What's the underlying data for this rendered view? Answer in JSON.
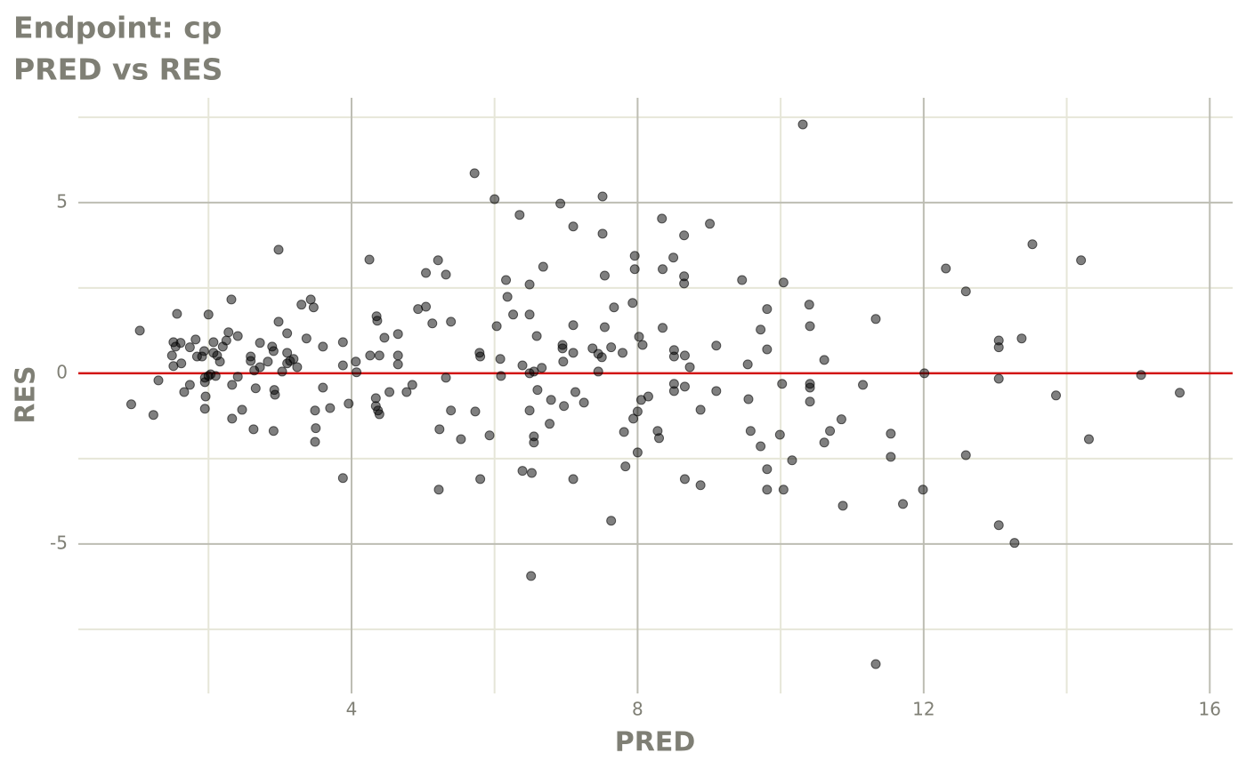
{
  "chart_data": {
    "type": "scatter",
    "title": "Endpoint:  cp",
    "subtitle": "PRED vs RES",
    "x_label": "PRED",
    "y_label": "RES",
    "xlim": [
      0.18,
      16.32
    ],
    "ylim": [
      -9.38,
      8.07
    ],
    "xticks": [
      4,
      8,
      12,
      16
    ],
    "yticks": [
      -5,
      0,
      5
    ],
    "xminor": [
      2,
      6,
      10,
      14
    ],
    "yminor": [
      -7.5,
      -2.5,
      2.5,
      7.5
    ],
    "grid": true,
    "hline": 0,
    "hline_color": "#d21515",
    "color": "#000000",
    "series": [
      {
        "name": "RES",
        "x": [
          0.92,
          1.23,
          1.04,
          1.3,
          1.49,
          1.51,
          1.51,
          1.54,
          1.56,
          1.61,
          1.62,
          1.66,
          1.74,
          1.74,
          1.82,
          1.84,
          1.91,
          1.94,
          1.95,
          1.95,
          1.96,
          1.95,
          2.0,
          2.0,
          2.03,
          2.07,
          2.07,
          2.1,
          2.12,
          2.16,
          2.2,
          2.25,
          2.28,
          2.32,
          2.33,
          2.33,
          2.41,
          2.41,
          2.47,
          2.59,
          2.59,
          2.63,
          2.64,
          2.66,
          2.72,
          2.72,
          2.83,
          2.89,
          2.91,
          2.91,
          2.92,
          2.93,
          2.98,
          2.98,
          3.03,
          3.1,
          3.1,
          3.1,
          3.14,
          3.19,
          3.24,
          3.3,
          3.37,
          3.43,
          3.47,
          3.49,
          3.49,
          3.5,
          3.6,
          3.6,
          3.7,
          3.88,
          3.88,
          3.88,
          3.96,
          4.06,
          4.07,
          4.25,
          4.26,
          4.34,
          4.34,
          4.35,
          4.36,
          4.37,
          4.39,
          4.39,
          4.46,
          4.53,
          4.65,
          4.65,
          4.65,
          4.77,
          4.85,
          4.93,
          5.04,
          5.04,
          5.13,
          5.21,
          5.23,
          5.22,
          5.32,
          5.32,
          5.39,
          5.39,
          5.53,
          5.72,
          5.73,
          5.79,
          5.8,
          5.8,
          5.93,
          6.0,
          6.03,
          6.08,
          6.09,
          6.16,
          6.18,
          6.26,
          6.35,
          6.39,
          6.39,
          6.49,
          6.49,
          6.49,
          6.49,
          6.52,
          6.51,
          6.55,
          6.55,
          6.55,
          6.59,
          6.6,
          6.68,
          6.66,
          6.79,
          6.77,
          6.92,
          6.95,
          6.95,
          6.96,
          6.97,
          7.1,
          7.1,
          7.1,
          7.1,
          7.13,
          7.25,
          7.37,
          7.45,
          7.45,
          7.5,
          7.51,
          7.51,
          7.54,
          7.54,
          7.63,
          7.63,
          7.67,
          7.79,
          7.81,
          7.83,
          7.93,
          7.96,
          7.96,
          7.94,
          8.0,
          8.0,
          8.02,
          8.05,
          8.07,
          8.15,
          8.28,
          8.3,
          8.34,
          8.35,
          8.35,
          8.5,
          8.51,
          8.51,
          8.51,
          8.51,
          8.65,
          8.65,
          8.65,
          8.66,
          8.66,
          8.66,
          8.73,
          8.88,
          8.88,
          9.01,
          9.1,
          9.1,
          9.46,
          9.54,
          9.55,
          9.58,
          9.72,
          9.72,
          9.81,
          9.81,
          9.81,
          9.81,
          9.99,
          10.02,
          10.04,
          10.04,
          10.16,
          10.31,
          10.4,
          10.41,
          10.41,
          10.41,
          10.41,
          10.61,
          10.61,
          10.69,
          10.85,
          10.87,
          11.15,
          11.33,
          11.33,
          11.54,
          11.54,
          11.71,
          11.99,
          12.01,
          12.31,
          12.59,
          12.59,
          13.05,
          13.05,
          13.05,
          13.05,
          13.27,
          13.37,
          13.52,
          13.85,
          14.2,
          14.31,
          15.04,
          15.58
        ],
        "values": [
          -0.91,
          -1.22,
          1.25,
          -0.21,
          0.52,
          0.91,
          0.21,
          0.78,
          1.74,
          0.89,
          0.29,
          -0.55,
          -0.34,
          0.76,
          0.99,
          0.49,
          0.49,
          0.65,
          -0.13,
          -0.26,
          -0.68,
          -1.04,
          1.72,
          -0.08,
          -0.03,
          0.91,
          0.6,
          -0.08,
          0.52,
          0.34,
          0.78,
          0.96,
          1.2,
          2.16,
          -0.34,
          -1.33,
          1.09,
          -0.1,
          -1.07,
          0.49,
          0.36,
          -1.64,
          0.08,
          -0.44,
          0.89,
          0.18,
          0.34,
          0.78,
          0.65,
          -1.69,
          -0.49,
          -0.63,
          3.62,
          1.51,
          0.05,
          1.17,
          0.6,
          0.29,
          0.36,
          0.42,
          0.18,
          2.01,
          1.02,
          2.16,
          1.93,
          -1.09,
          -2.01,
          -1.61,
          -0.42,
          0.78,
          -1.02,
          -3.07,
          0.23,
          0.91,
          -0.89,
          0.34,
          0.03,
          3.33,
          0.52,
          -0.73,
          -0.96,
          1.67,
          1.54,
          -1.09,
          -1.2,
          0.52,
          1.04,
          -0.55,
          1.15,
          0.52,
          0.26,
          -0.55,
          -0.34,
          1.88,
          2.94,
          1.95,
          1.46,
          3.31,
          -1.64,
          -3.41,
          2.89,
          -0.13,
          1.51,
          -1.09,
          -1.93,
          5.86,
          -1.12,
          0.6,
          0.49,
          -3.1,
          -1.82,
          5.1,
          1.38,
          0.42,
          -0.08,
          2.73,
          2.24,
          1.72,
          4.64,
          0.23,
          -2.86,
          2.6,
          1.72,
          0.0,
          -1.09,
          -2.92,
          -5.94,
          0.05,
          -1.85,
          -2.03,
          1.09,
          -0.49,
          3.12,
          0.16,
          -0.78,
          -1.48,
          4.97,
          0.83,
          0.73,
          0.34,
          -0.96,
          4.3,
          1.41,
          0.6,
          -3.1,
          -0.55,
          -0.86,
          0.73,
          0.05,
          0.57,
          0.47,
          5.18,
          4.09,
          2.86,
          1.35,
          0.76,
          -4.32,
          1.93,
          0.6,
          -1.72,
          -2.73,
          2.06,
          3.44,
          3.05,
          -1.33,
          -1.12,
          -2.32,
          1.07,
          -0.78,
          0.83,
          -0.68,
          -1.69,
          -1.9,
          4.53,
          3.05,
          1.33,
          3.39,
          0.68,
          0.49,
          -0.31,
          -0.52,
          4.04,
          2.84,
          2.63,
          0.52,
          -0.39,
          -3.1,
          0.18,
          -1.07,
          -3.28,
          4.38,
          0.81,
          -0.52,
          2.73,
          0.26,
          -0.76,
          -1.69,
          1.28,
          -2.14,
          1.88,
          0.7,
          -2.81,
          -3.41,
          -1.8,
          -0.31,
          2.66,
          -3.41,
          -2.55,
          7.29,
          2.01,
          1.38,
          -0.31,
          -0.42,
          -0.83,
          0.39,
          -2.03,
          -1.69,
          -1.35,
          -3.88,
          -0.34,
          1.59,
          -8.52,
          -1.77,
          -2.45,
          -3.83,
          -3.41,
          0.0,
          3.07,
          2.4,
          -2.4,
          0.96,
          0.76,
          -0.16,
          -4.45,
          -4.97,
          1.02,
          3.78,
          -0.65,
          3.31,
          -1.93,
          -0.05,
          -0.57
        ]
      }
    ]
  }
}
